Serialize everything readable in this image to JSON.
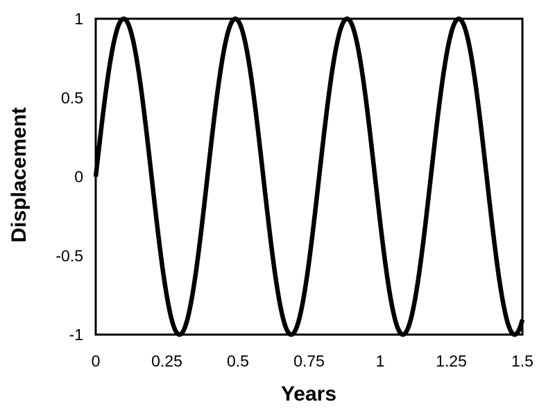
{
  "chart_data": {
    "type": "line",
    "title": "",
    "xlabel": "Years",
    "ylabel": "Displacement",
    "xlim": [
      0,
      1.5
    ],
    "ylim": [
      -1,
      1
    ],
    "x_ticks": {
      "values": [
        0,
        0.25,
        0.5,
        0.75,
        1,
        1.25,
        1.5
      ],
      "labels": [
        "0",
        "0.25",
        "0.5",
        "0.75",
        "1",
        "1.25",
        "1.5"
      ]
    },
    "y_ticks": {
      "values": [
        1,
        0.5,
        0,
        -0.5,
        -1
      ],
      "labels": [
        "1",
        "0.5",
        "0",
        "-0.5",
        "-1"
      ]
    },
    "grid": false,
    "legend": false,
    "frame": true,
    "frame_color": "#000000",
    "series": [
      {
        "name": "displacement",
        "function": "y = sin(16 t)",
        "amplitude": 1,
        "angular_frequency": 16,
        "phase": 0,
        "t_start": 0,
        "t_end": 1.5,
        "color": "#000000",
        "linewidth": 6.5,
        "key_points": {
          "peaks_t": [
            0.098,
            0.491,
            0.884,
            1.276
          ],
          "troughs_t": [
            0.295,
            0.687,
            1.08,
            1.473
          ],
          "value_at_end": -0.906
        }
      }
    ]
  }
}
